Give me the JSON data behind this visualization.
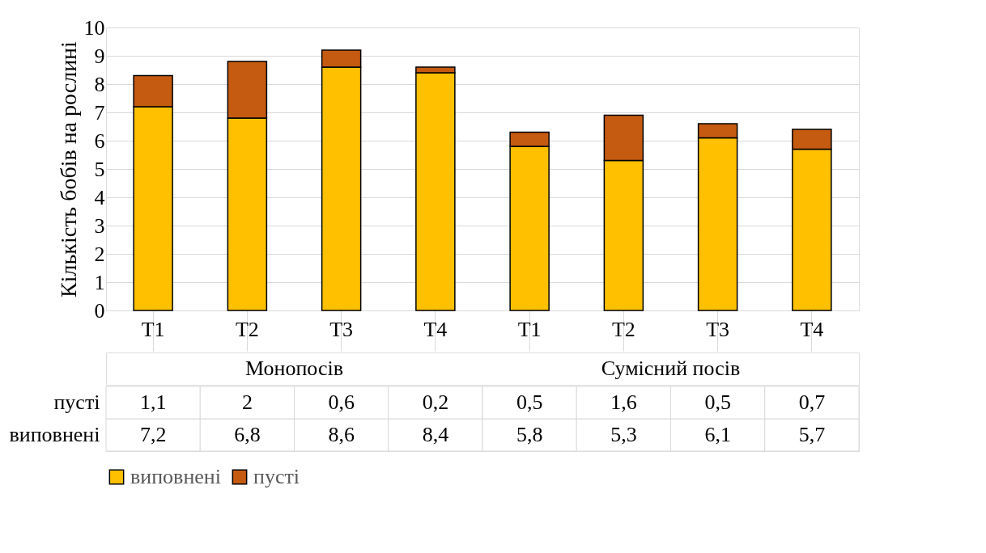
{
  "chart_data": {
    "type": "bar",
    "stacked": true,
    "ylabel": "Кількість  бобів на рослині",
    "categories": [
      "T1",
      "T2",
      "T3",
      "T4",
      "T1",
      "T2",
      "T3",
      "T4"
    ],
    "series": [
      {
        "name": "виповнені",
        "color": "#ffc000",
        "values": [
          7.2,
          6.8,
          8.6,
          8.4,
          5.8,
          5.3,
          6.1,
          5.7
        ],
        "value_labels": [
          "7,2",
          "6,8",
          "8,6",
          "8,4",
          "5,8",
          "5,3",
          "6,1",
          "5,7"
        ]
      },
      {
        "name": "пусті",
        "color": "#c55a11",
        "values": [
          1.1,
          2,
          0.6,
          0.2,
          0.5,
          1.6,
          0.5,
          0.7
        ],
        "value_labels": [
          "1,1",
          "2",
          "0,6",
          "0,2",
          "0,5",
          "1,6",
          "0,5",
          "0,7"
        ]
      }
    ],
    "annotations": [
      "Монопосів",
      "Сумісний посів"
    ],
    "ylim": [
      0,
      10
    ],
    "yticks": [
      0,
      1,
      2,
      3,
      4,
      5,
      6,
      7,
      8,
      9,
      10
    ],
    "grid": "y",
    "legend": "bottom"
  }
}
